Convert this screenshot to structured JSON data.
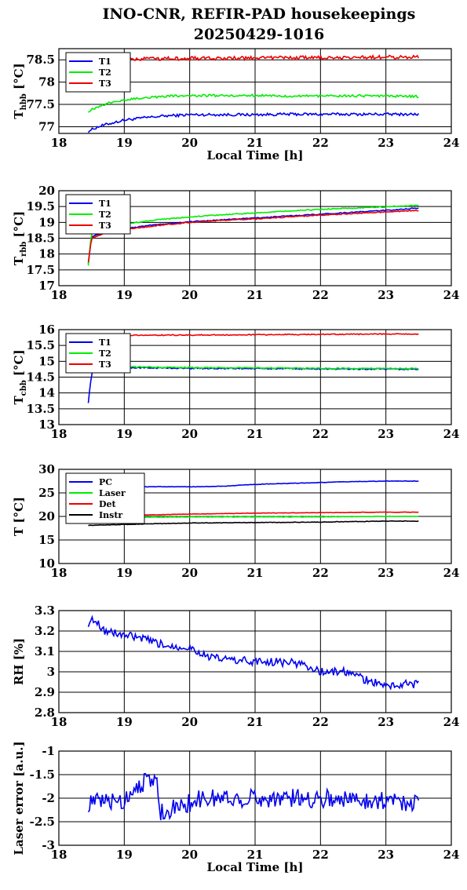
{
  "header": {
    "title_line1": "INO-CNR, REFIR-PAD housekeepings",
    "title_line2": "20250429-1016"
  },
  "colors": {
    "blue": "#0000ee",
    "green": "#00ee00",
    "red": "#ee0000",
    "black": "#000000"
  },
  "chart_data": [
    {
      "type": "line",
      "ylabel_main": "T",
      "ylabel_sub": "hbb",
      "ylabel_unit": " [°C]",
      "xlabel": "Local Time [h]",
      "xlim": [
        18,
        24
      ],
      "ylim": [
        76.85,
        78.75
      ],
      "xticks": [
        "18",
        "19",
        "20",
        "21",
        "22",
        "23",
        "24"
      ],
      "yticks": [
        77,
        77.5,
        78,
        78.5
      ],
      "ytick_labels": [
        "77",
        "77.5",
        "78",
        "78.5"
      ],
      "grid": true,
      "legend": "top-left",
      "series": [
        {
          "name": "T1",
          "color": "#0000ee",
          "x": [
            18.45,
            18.6,
            18.8,
            19.0,
            19.3,
            19.6,
            20.0,
            20.5,
            21.0,
            21.5,
            22.0,
            22.5,
            23.0,
            23.5
          ],
          "y": [
            76.9,
            77.0,
            77.08,
            77.15,
            77.2,
            77.24,
            77.27,
            77.27,
            77.27,
            77.28,
            77.28,
            77.28,
            77.28,
            77.28
          ],
          "noise": 0.03
        },
        {
          "name": "T2",
          "color": "#00ee00",
          "x": [
            18.45,
            18.6,
            18.8,
            19.0,
            19.3,
            19.6,
            20.0,
            20.5,
            21.0,
            21.5,
            22.0,
            22.5,
            23.0,
            23.5
          ],
          "y": [
            77.35,
            77.45,
            77.55,
            77.6,
            77.65,
            77.68,
            77.7,
            77.7,
            77.7,
            77.69,
            77.69,
            77.69,
            77.69,
            77.68
          ],
          "noise": 0.025
        },
        {
          "name": "T3",
          "color": "#ee0000",
          "x": [
            18.45,
            19.0,
            20.0,
            21.0,
            22.0,
            23.0,
            23.5
          ],
          "y": [
            78.52,
            78.52,
            78.53,
            78.54,
            78.55,
            78.56,
            78.56
          ],
          "noise": 0.04
        }
      ]
    },
    {
      "type": "line",
      "ylabel_main": "T",
      "ylabel_sub": "rbb",
      "ylabel_unit": " [°C]",
      "xlabel": "",
      "xlim": [
        18,
        24
      ],
      "ylim": [
        17,
        20
      ],
      "xticks": [
        "18",
        "19",
        "20",
        "21",
        "22",
        "23",
        "24"
      ],
      "yticks": [
        17,
        17.5,
        18,
        18.5,
        19,
        19.5,
        20
      ],
      "ytick_labels": [
        "17",
        "17.5",
        "18",
        "18.5",
        "19",
        "19.5",
        "20"
      ],
      "grid": true,
      "legend": "top-left",
      "series": [
        {
          "name": "T1",
          "color": "#0000ee",
          "x": [
            18.45,
            18.5,
            18.7,
            19.0,
            19.5,
            20.0,
            20.5,
            21.0,
            21.5,
            22.0,
            22.5,
            23.0,
            23.5
          ],
          "y": [
            17.7,
            18.55,
            18.7,
            18.8,
            18.93,
            19.02,
            19.08,
            19.14,
            19.2,
            19.26,
            19.32,
            19.38,
            19.45
          ],
          "noise": 0.015
        },
        {
          "name": "T2",
          "color": "#00ee00",
          "x": [
            18.45,
            18.5,
            18.7,
            19.0,
            19.5,
            20.0,
            20.5,
            21.0,
            21.5,
            22.0,
            22.5,
            23.0,
            23.5
          ],
          "y": [
            17.65,
            18.7,
            18.85,
            18.95,
            19.08,
            19.17,
            19.24,
            19.3,
            19.36,
            19.41,
            19.45,
            19.49,
            19.54
          ],
          "noise": 0.015
        },
        {
          "name": "T3",
          "color": "#ee0000",
          "x": [
            18.45,
            18.5,
            18.7,
            19.0,
            19.5,
            20.0,
            20.5,
            21.0,
            21.5,
            22.0,
            22.5,
            23.0,
            23.5
          ],
          "y": [
            17.75,
            18.5,
            18.65,
            18.77,
            18.9,
            19.0,
            19.06,
            19.11,
            19.17,
            19.23,
            19.28,
            19.33,
            19.38
          ],
          "noise": 0.015
        }
      ]
    },
    {
      "type": "line",
      "ylabel_main": "T",
      "ylabel_sub": "cbb",
      "ylabel_unit": " [°C]",
      "xlabel": "",
      "xlim": [
        18,
        24
      ],
      "ylim": [
        13,
        16
      ],
      "xticks": [
        "18",
        "19",
        "20",
        "21",
        "22",
        "23",
        "24"
      ],
      "yticks": [
        13,
        13.5,
        14,
        14.5,
        15,
        15.5,
        16
      ],
      "ytick_labels": [
        "13",
        "13.5",
        "14",
        "14.5",
        "15",
        "15.5",
        "16"
      ],
      "grid": true,
      "legend": "top-left",
      "series": [
        {
          "name": "T1",
          "color": "#0000ee",
          "x": [
            18.45,
            18.5,
            18.6,
            19.0,
            20.0,
            21.0,
            22.0,
            23.0,
            23.5
          ],
          "y": [
            13.7,
            14.6,
            14.8,
            14.8,
            14.78,
            14.77,
            14.76,
            14.75,
            14.75
          ],
          "noise": 0.02
        },
        {
          "name": "T2",
          "color": "#00ee00",
          "x": [
            18.45,
            18.6,
            19.0,
            20.0,
            21.0,
            22.0,
            23.0,
            23.5
          ],
          "y": [
            14.85,
            14.82,
            14.82,
            14.8,
            14.79,
            14.78,
            14.77,
            14.77
          ],
          "noise": 0.02
        },
        {
          "name": "T3",
          "color": "#ee0000",
          "x": [
            18.45,
            19.0,
            20.0,
            21.0,
            22.0,
            23.0,
            23.5
          ],
          "y": [
            15.82,
            15.82,
            15.83,
            15.84,
            15.85,
            15.86,
            15.86
          ],
          "noise": 0.015
        }
      ]
    },
    {
      "type": "line",
      "ylabel_main": "T [°C]",
      "ylabel_sub": "",
      "ylabel_unit": "",
      "xlabel": "",
      "xlim": [
        18,
        24
      ],
      "ylim": [
        10,
        30
      ],
      "xticks": [
        "18",
        "19",
        "20",
        "21",
        "22",
        "23",
        "24"
      ],
      "yticks": [
        10,
        15,
        20,
        25,
        30
      ],
      "ytick_labels": [
        "10",
        "15",
        "20",
        "25",
        "30"
      ],
      "grid": true,
      "legend": "top-left",
      "series": [
        {
          "name": "PC",
          "color": "#0000ee",
          "x": [
            18.45,
            19.0,
            19.5,
            20.0,
            20.5,
            21.0,
            21.5,
            22.0,
            22.5,
            23.0,
            23.5
          ],
          "y": [
            26.3,
            26.3,
            26.3,
            26.3,
            26.4,
            26.8,
            27.0,
            27.2,
            27.4,
            27.5,
            27.5
          ],
          "noise": 0.05
        },
        {
          "name": "Laser",
          "color": "#00ee00",
          "x": [
            18.45,
            19.0,
            20.0,
            21.0,
            22.0,
            23.0,
            23.5
          ],
          "y": [
            19.7,
            19.8,
            19.9,
            19.9,
            19.9,
            20.0,
            20.0
          ],
          "noise": 0.05
        },
        {
          "name": "Det",
          "color": "#ee0000",
          "x": [
            18.45,
            19.0,
            20.0,
            21.0,
            22.0,
            23.0,
            23.5
          ],
          "y": [
            20.0,
            20.2,
            20.5,
            20.7,
            20.8,
            20.9,
            20.9
          ],
          "noise": 0.04
        },
        {
          "name": "Instr",
          "color": "#000000",
          "x": [
            18.45,
            19.0,
            20.0,
            21.0,
            22.0,
            23.0,
            23.5
          ],
          "y": [
            18.1,
            18.3,
            18.6,
            18.7,
            18.8,
            19.0,
            19.0
          ],
          "noise": 0.05
        }
      ]
    },
    {
      "type": "line",
      "ylabel_main": "RH [%]",
      "ylabel_sub": "",
      "ylabel_unit": "",
      "xlabel": "",
      "xlim": [
        18,
        24
      ],
      "ylim": [
        2.8,
        3.3
      ],
      "xticks": [
        "18",
        "19",
        "20",
        "21",
        "22",
        "23",
        "24"
      ],
      "yticks": [
        2.8,
        2.9,
        3.0,
        3.1,
        3.2,
        3.3
      ],
      "ytick_labels": [
        "2.8",
        "2.9",
        "3",
        "3.1",
        "3.2",
        "3.3"
      ],
      "grid": true,
      "legend": "none",
      "series": [
        {
          "name": "",
          "color": "#0000ee",
          "x": [
            18.45,
            18.55,
            18.7,
            19.0,
            19.3,
            19.6,
            20.0,
            20.3,
            20.6,
            21.0,
            21.3,
            21.7,
            22.0,
            22.4,
            22.7,
            23.0,
            23.3,
            23.5
          ],
          "y": [
            3.24,
            3.26,
            3.2,
            3.18,
            3.16,
            3.13,
            3.12,
            3.07,
            3.06,
            3.05,
            3.05,
            3.04,
            3.0,
            3.0,
            2.96,
            2.93,
            2.94,
            2.94
          ],
          "noise": 0.02
        }
      ]
    },
    {
      "type": "line",
      "ylabel_main": "Laser error [a.u.]",
      "ylabel_sub": "",
      "ylabel_unit": "",
      "xlabel": "Local Time [h]",
      "xlim": [
        18,
        24
      ],
      "ylim": [
        -3,
        -1
      ],
      "xticks": [
        "18",
        "19",
        "20",
        "21",
        "22",
        "23",
        "24"
      ],
      "yticks": [
        -3,
        -2.5,
        -2,
        -1.5,
        -1
      ],
      "ytick_labels": [
        "-3",
        "-2.5",
        "-2",
        "-1.5",
        "-1"
      ],
      "grid": true,
      "legend": "none",
      "series": [
        {
          "name": "",
          "color": "#0000ee",
          "x": [
            18.45,
            19.0,
            19.2,
            19.5,
            19.55,
            19.8,
            20.2,
            21.0,
            22.0,
            23.0,
            23.5
          ],
          "y": [
            -2.1,
            -2.05,
            -1.7,
            -1.6,
            -2.3,
            -2.2,
            -2.0,
            -2.0,
            -2.0,
            -2.05,
            -2.1
          ],
          "noise": 0.2
        }
      ]
    }
  ]
}
